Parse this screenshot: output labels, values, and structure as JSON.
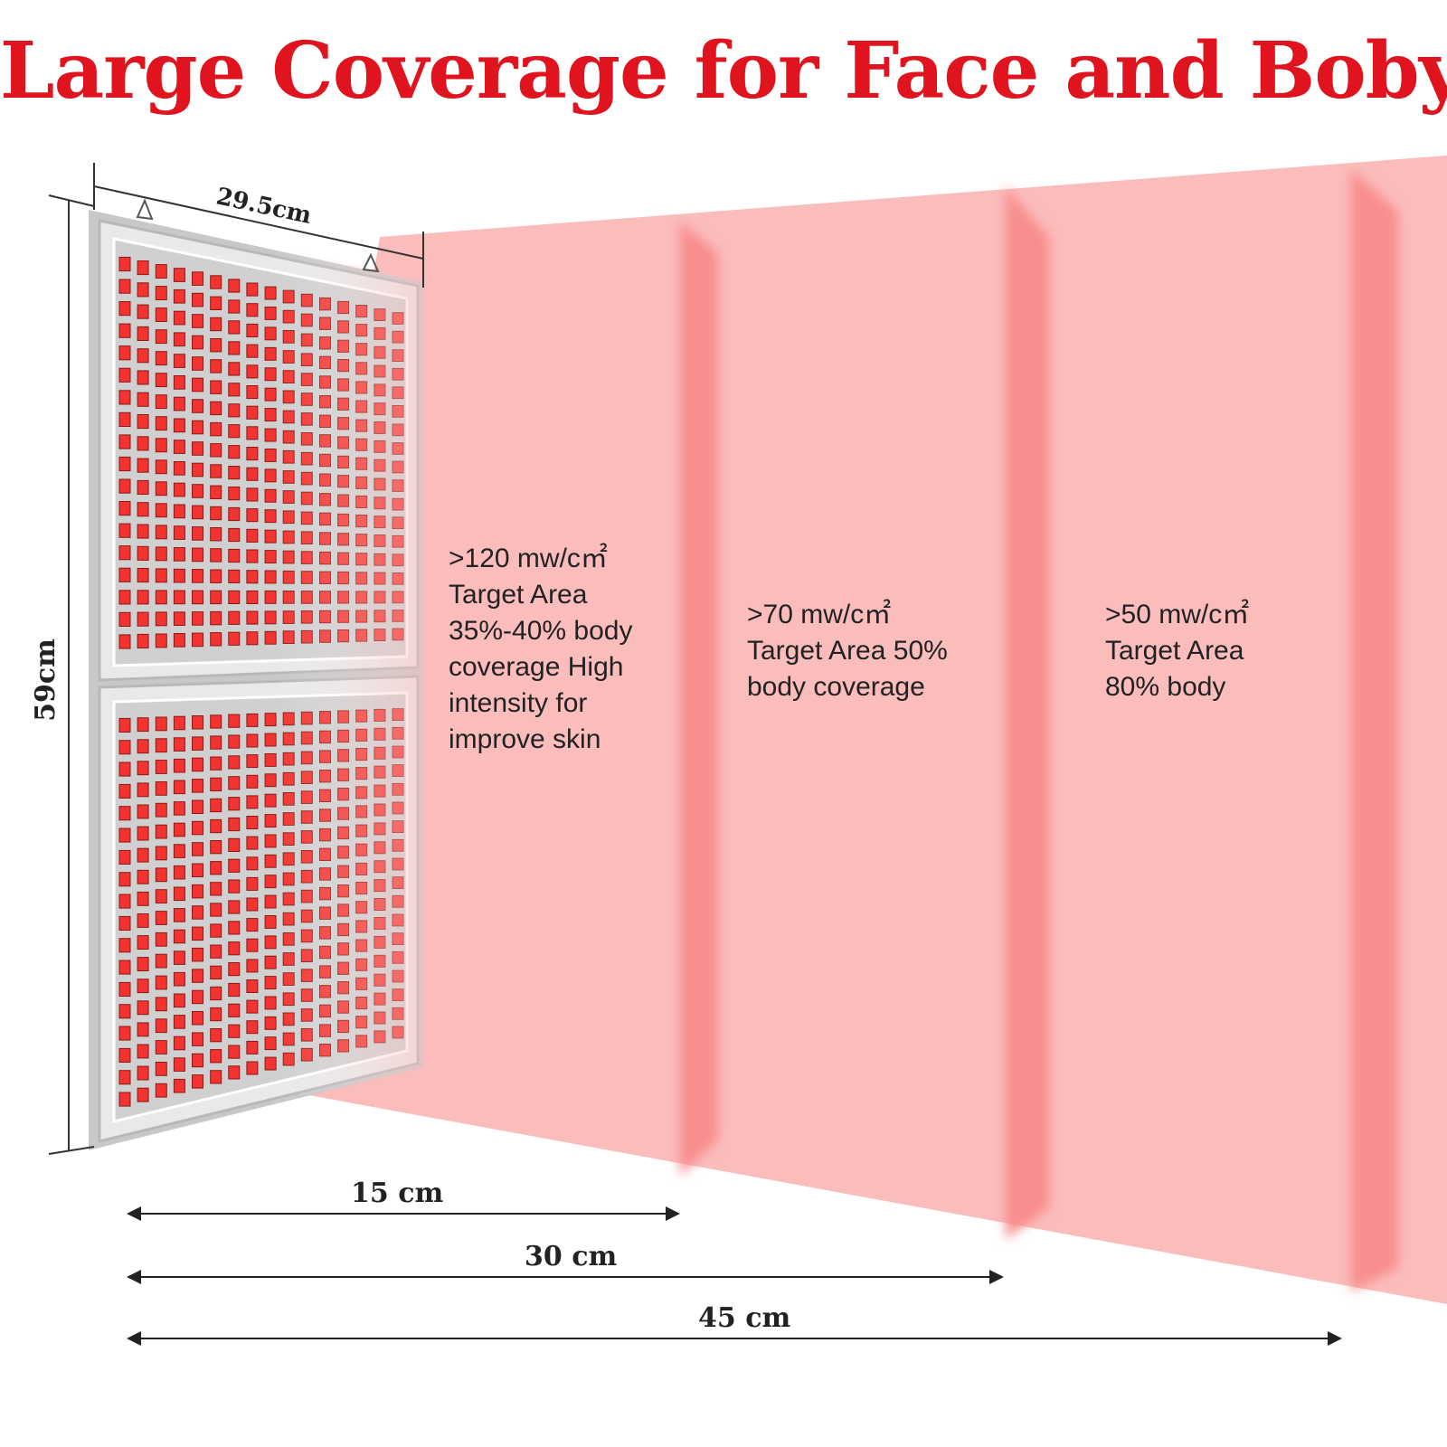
{
  "colors": {
    "title": "#e0141e",
    "beam": "#fbbcbc",
    "beam_divider": "#f88e8e",
    "panel_frame": "#d6d6d6",
    "led_red": "#f2332f",
    "text": "#222222"
  },
  "title": "Large Coverage for Face and Boby",
  "panel": {
    "width_label": "29.5cm",
    "height_label": "59cm",
    "hanger_icon": "triangle-hook-icon"
  },
  "zones": [
    {
      "lines": [
        ">120 mw/c㎡",
        "Target Area",
        "35%-40% body",
        "coverage High",
        "intensity for",
        "improve skin"
      ]
    },
    {
      "lines": [
        ">70 mw/c㎡",
        "Target Area 50%",
        "body coverage"
      ]
    },
    {
      "lines": [
        ">50 mw/c㎡",
        "Target Area",
        "80% body"
      ]
    }
  ],
  "distances": [
    {
      "label": "15 cm"
    },
    {
      "label": "30 cm"
    },
    {
      "label": "45 cm"
    }
  ]
}
